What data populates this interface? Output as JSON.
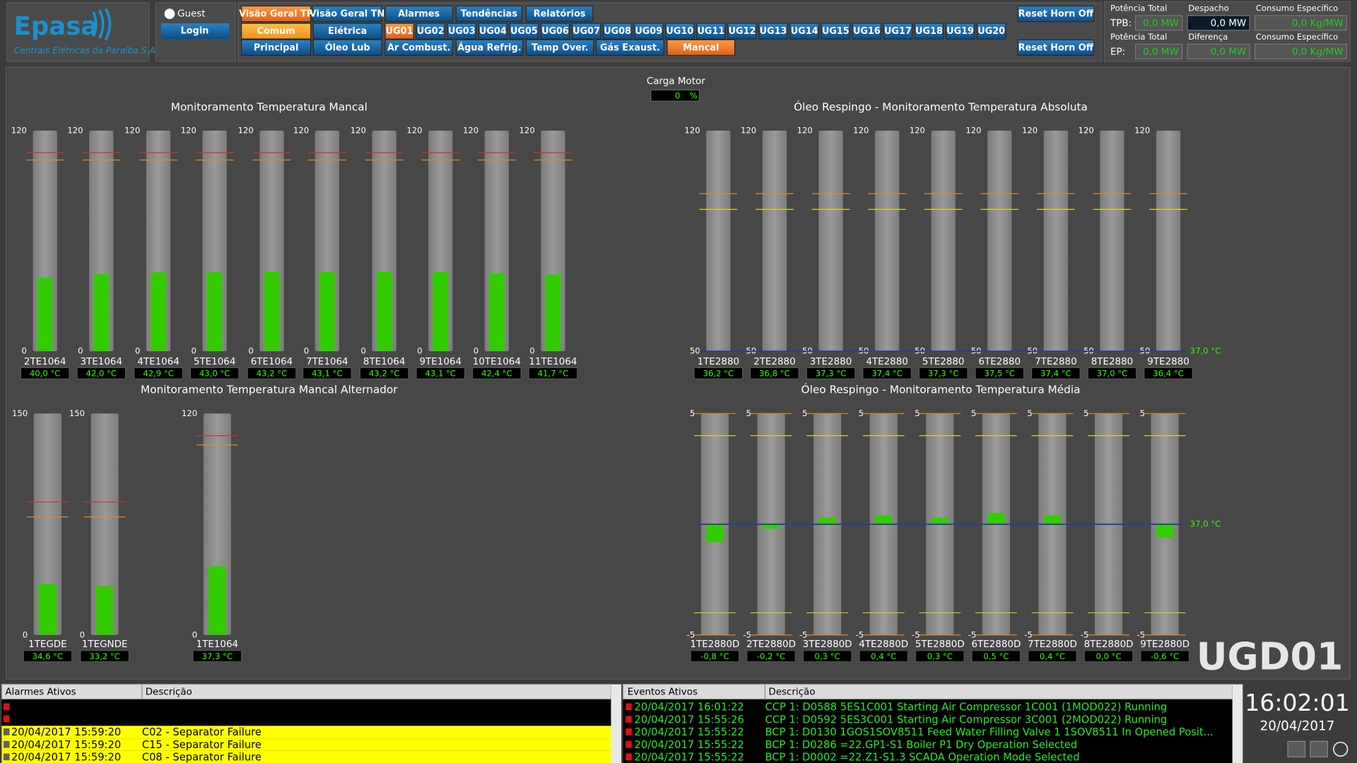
{
  "header": {
    "logo": "Epasa",
    "company": "Centrais Elétricas da Paraíba S.A.",
    "user": "Guest",
    "login": "Login"
  },
  "nav": {
    "row1": [
      "Visão Geral TP",
      "Visão Geral TN",
      "Alarmes",
      "Tendências",
      "Relatórios"
    ],
    "row2": [
      "Comum",
      "Elétrica"
    ],
    "units": [
      "UG01",
      "UG02",
      "UG03",
      "UG04",
      "UG05",
      "UG06",
      "UG07",
      "UG08",
      "UG09",
      "UG10",
      "UG11",
      "UG12",
      "UG13",
      "UG14",
      "UG15",
      "UG16",
      "UG17",
      "UG18",
      "UG19",
      "UG20"
    ],
    "row3": [
      "Principal",
      "Óleo Lub",
      "Ar Combust.",
      "Água Refrig.",
      "Temp Over.",
      "Gás Exaust.",
      "Mancal"
    ],
    "reset": [
      "Reset Horn Off",
      "Reset Horn Off"
    ]
  },
  "power": [
    {
      "label": "Potência Total",
      "prefix": "TPB:",
      "value": "0,0 MW"
    },
    {
      "label": "Despacho",
      "value": "0,0 MW"
    },
    {
      "label": "Consumo Específico",
      "value": "0,0 Kg/MW"
    },
    {
      "label": "Potência Total",
      "prefix": "EP:",
      "value": "0,0 MW"
    },
    {
      "label": "Diferença",
      "value": "0,0 MW"
    },
    {
      "label": "Consumo Específico",
      "value": "0,0 Kg/MW"
    }
  ],
  "carga_motor": {
    "label": "Carga Motor",
    "value": "0",
    "unit": "%"
  },
  "groups": [
    {
      "title": "Monitoramento Temperatura Mancal",
      "max": 120,
      "min": 0,
      "limits": [
        {
          "value": 108,
          "color": "#e02828"
        },
        {
          "value": 104,
          "color": "#e08a28"
        }
      ],
      "gauges": [
        {
          "name": "2TE1064",
          "value": 40.0,
          "value_label": "40,0 °C"
        },
        {
          "name": "3TE1064",
          "value": 42.0,
          "value_label": "42,0 °C"
        },
        {
          "name": "4TE1064",
          "value": 42.9,
          "value_label": "42,9 °C"
        },
        {
          "name": "5TE1064",
          "value": 43.0,
          "value_label": "43,0 °C"
        },
        {
          "name": "6TE1064",
          "value": 43.2,
          "value_label": "43,2 °C"
        },
        {
          "name": "7TE1064",
          "value": 43.1,
          "value_label": "43,1 °C"
        },
        {
          "name": "8TE1064",
          "value": 43.2,
          "value_label": "43,2 °C"
        },
        {
          "name": "9TE1064",
          "value": 43.1,
          "value_label": "43,1 °C"
        },
        {
          "name": "10TE1064",
          "value": 42.4,
          "value_label": "42,4 °C"
        },
        {
          "name": "11TE1064",
          "value": 41.7,
          "value_label": "41,7 °C"
        }
      ]
    },
    {
      "title": "Óleo Respingo - Monitoramento Temperatura Absoluta",
      "max": 120,
      "min": 50,
      "limits": [
        {
          "value": 100,
          "color": "#e08a28"
        },
        {
          "value": 95,
          "color": "#e0d028"
        }
      ],
      "setpoint_label": "37,0 °C",
      "gauges": [
        {
          "name": "1TE2880",
          "value": 36.2,
          "value_label": "36,2 °C"
        },
        {
          "name": "2TE2880",
          "value": 36.8,
          "value_label": "36,8 °C"
        },
        {
          "name": "3TE2880",
          "value": 37.3,
          "value_label": "37,3 °C"
        },
        {
          "name": "4TE2880",
          "value": 37.4,
          "value_label": "37,4 °C"
        },
        {
          "name": "5TE2880",
          "value": 37.3,
          "value_label": "37,3 °C"
        },
        {
          "name": "6TE2880",
          "value": 37.5,
          "value_label": "37,5 °C"
        },
        {
          "name": "7TE2880",
          "value": 37.4,
          "value_label": "37,4 °C"
        },
        {
          "name": "8TE2880",
          "value": 37.0,
          "value_label": "37,0 °C"
        },
        {
          "name": "9TE2880",
          "value": 36.4,
          "value_label": "36,4 °C"
        }
      ]
    },
    {
      "title": "Monitoramento Temperatura Mancal Alternador",
      "gauges": [
        {
          "name": "1TEGDE",
          "value": 34.6,
          "value_label": "34,6 °C",
          "max": 150,
          "min": 0,
          "limits": [
            {
              "value": 90,
              "color": "#e02828"
            },
            {
              "value": 80,
              "color": "#e08a28"
            }
          ]
        },
        {
          "name": "1TEGNDE",
          "value": 33.2,
          "value_label": "33,2 °C",
          "max": 150,
          "min": 0,
          "limits": [
            {
              "value": 90,
              "color": "#e02828"
            },
            {
              "value": 80,
              "color": "#e08a28"
            }
          ]
        },
        {
          "name": "1TE1064",
          "value": 37.3,
          "value_label": "37,3 °C",
          "max": 120,
          "min": 0,
          "limits": [
            {
              "value": 108,
              "color": "#e02828"
            },
            {
              "value": 103,
              "color": "#e08a28"
            }
          ]
        }
      ]
    },
    {
      "title": "Óleo Respingo - Monitoramento Temperatura Média",
      "max": 5,
      "min": -5,
      "limits": [
        {
          "value": 5,
          "color": "#e08a28"
        },
        {
          "value": 4,
          "color": "#e0d028"
        },
        {
          "value": -4,
          "color": "#e0d028"
        },
        {
          "value": -5,
          "color": "#e08a28"
        }
      ],
      "setpoint_label": "37,0 °C",
      "gauges": [
        {
          "name": "1TE2880D",
          "value": -0.8,
          "value_label": "-0,8 °C"
        },
        {
          "name": "2TE2880D",
          "value": -0.2,
          "value_label": "-0,2 °C"
        },
        {
          "name": "3TE2880D",
          "value": 0.3,
          "value_label": "0,3 °C"
        },
        {
          "name": "4TE2880D",
          "value": 0.4,
          "value_label": "0,4 °C"
        },
        {
          "name": "5TE2880D",
          "value": 0.3,
          "value_label": "0,3 °C"
        },
        {
          "name": "6TE2880D",
          "value": 0.5,
          "value_label": "0,5 °C"
        },
        {
          "name": "7TE2880D",
          "value": 0.4,
          "value_label": "0,4 °C"
        },
        {
          "name": "8TE2880D",
          "value": 0.0,
          "value_label": "0,0 °C"
        },
        {
          "name": "9TE2880D",
          "value": -0.6,
          "value_label": "-0,6 °C"
        }
      ]
    }
  ],
  "unit_id": "UGD01",
  "alarms": {
    "headers": [
      "Alarmes Ativos",
      "Descrição"
    ],
    "rows": [
      [
        "20/04/2017 15:59:20",
        "C02 - Separator Failure"
      ],
      [
        "20/04/2017 15:59:20",
        "C15 - Separator Failure"
      ],
      [
        "20/04/2017 15:59:20",
        "C08 - Separator Failure"
      ]
    ]
  },
  "events": {
    "headers": [
      "Eventos Ativos",
      "Descrição"
    ],
    "rows": [
      [
        "20/04/2017 16:01:22",
        "CCP 1: D0588 5ES1C001 Starting Air Compressor 1C001 (1MOD022) Running"
      ],
      [
        "20/04/2017 15:55:26",
        "CCP 1: D0592 5ES3C001 Starting Air Compressor 3C001 (2MOD022) Running"
      ],
      [
        "20/04/2017 15:55:22",
        "BCP 1: D0130 1GOS1SOV8511 Feed Water Filling Valve 1 1SOV8511 In Opened Posit..."
      ],
      [
        "20/04/2017 15:55:22",
        "BCP 1: D0286 =22.GP1-S1 Boiler P1 Dry Operation Selected"
      ],
      [
        "20/04/2017 15:55:22",
        "BCP 1: D0002 =22.Z1-S1.3 SCADA Operation Mode Selected"
      ]
    ]
  },
  "clock": {
    "time": "16:02:01",
    "date": "20/04/2017"
  }
}
